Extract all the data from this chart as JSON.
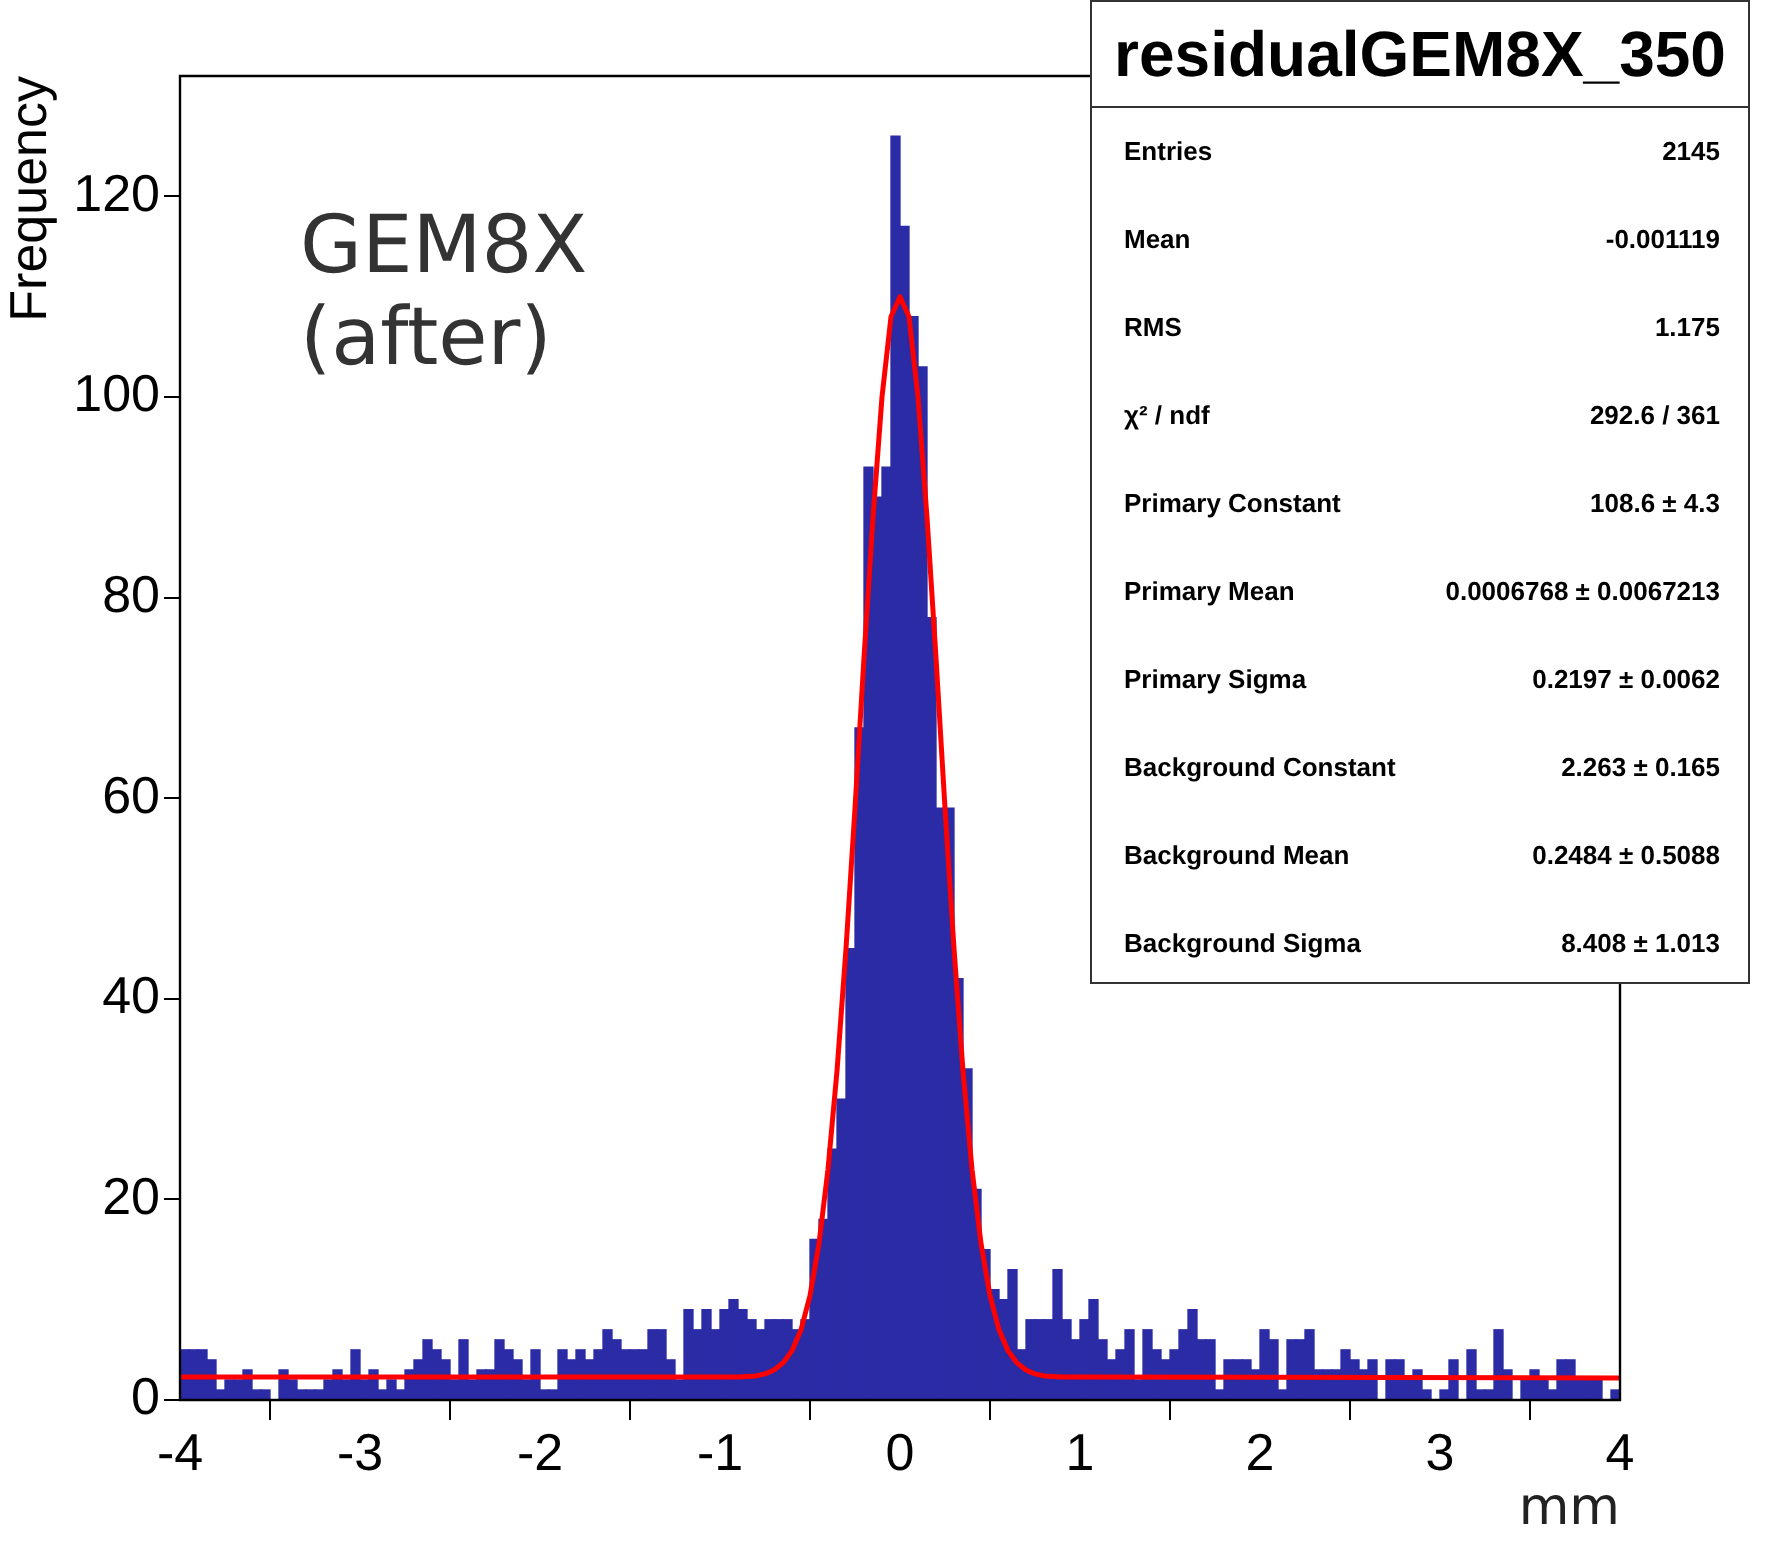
{
  "chart_data": {
    "type": "histogram",
    "title": "residualGEM8X_350",
    "xlabel": "mm",
    "ylabel": "Frequency",
    "bins": [
      -4,
      -3.95,
      -3.9,
      -3.85,
      -3.8,
      -3.75,
      -3.7,
      -3.65,
      -3.6,
      -3.55,
      -3.5,
      -3.45,
      -3.4,
      -3.35,
      -3.3,
      -3.25,
      -3.2,
      -3.15,
      -3.1,
      -3.05,
      -3,
      -2.95,
      -2.9,
      -2.85,
      -2.8,
      -2.75,
      -2.7,
      -2.65,
      -2.6,
      -2.55,
      -2.5,
      -2.45,
      -2.4,
      -2.35,
      -2.3,
      -2.25,
      -2.2,
      -2.15,
      -2.1,
      -2.05,
      -2,
      -1.95,
      -1.9,
      -1.85,
      -1.8,
      -1.75,
      -1.7,
      -1.65,
      -1.6,
      -1.55,
      -1.5,
      -1.45,
      -1.4,
      -1.35,
      -1.3,
      -1.25,
      -1.2,
      -1.15,
      -1.1,
      -1.05,
      -1,
      -0.95,
      -0.9,
      -0.85,
      -0.8,
      -0.75,
      -0.7,
      -0.65,
      -0.6,
      -0.55,
      -0.5,
      -0.45,
      -0.4,
      -0.35,
      -0.3,
      -0.25,
      -0.2,
      -0.15,
      -0.1,
      -0.05,
      0,
      0.05,
      0.1,
      0.15,
      0.2,
      0.25,
      0.3,
      0.35,
      0.4,
      0.45,
      0.5,
      0.55,
      0.6,
      0.65,
      0.7,
      0.75,
      0.8,
      0.85,
      0.9,
      0.95,
      1,
      1.05,
      1.1,
      1.15,
      1.2,
      1.25,
      1.3,
      1.35,
      1.4,
      1.45,
      1.5,
      1.55,
      1.6,
      1.65,
      1.7,
      1.75,
      1.8,
      1.85,
      1.9,
      1.95,
      2,
      2.05,
      2.1,
      2.15,
      2.2,
      2.25,
      2.3,
      2.35,
      2.4,
      2.45,
      2.5,
      2.55,
      2.6,
      2.65,
      2.7,
      2.75,
      2.8,
      2.85,
      2.9,
      2.95,
      3,
      3.05,
      3.1,
      3.15,
      3.2,
      3.25,
      3.3,
      3.35,
      3.4,
      3.45,
      3.5,
      3.55,
      3.6,
      3.65,
      3.7,
      3.75,
      3.8,
      3.85,
      3.9,
      3.95,
      4
    ],
    "values": [
      5,
      5,
      5,
      4,
      1,
      2,
      2,
      3,
      1,
      1,
      0,
      3,
      2,
      1,
      1,
      1,
      2,
      3,
      2,
      5,
      2,
      3,
      1,
      2,
      1,
      3,
      4,
      6,
      5,
      4,
      2,
      6,
      2,
      3,
      3,
      6,
      5,
      4,
      2,
      5,
      1,
      1,
      5,
      4,
      5,
      4,
      5,
      7,
      6,
      5,
      5,
      5,
      7,
      7,
      4,
      2,
      9,
      7,
      9,
      7,
      9,
      10,
      9,
      8,
      7,
      8,
      8,
      8,
      7,
      8,
      16,
      18,
      25,
      30,
      45,
      67,
      93,
      90,
      93,
      126,
      117,
      108,
      103,
      78,
      59,
      59,
      42,
      33,
      21,
      15,
      11,
      10,
      13,
      5,
      8,
      8,
      8,
      13,
      8,
      6,
      8,
      10,
      6,
      4,
      5,
      7,
      2,
      7,
      5,
      4,
      5,
      7,
      9,
      6,
      6,
      1,
      4,
      4,
      4,
      3,
      7,
      6,
      1,
      6,
      6,
      7,
      3,
      3,
      3,
      5,
      4,
      3,
      4,
      0,
      4,
      4,
      2,
      3,
      1,
      0,
      1,
      4,
      0,
      5,
      1,
      1,
      7,
      3,
      0,
      2,
      3,
      2,
      1,
      4,
      4,
      2,
      2,
      2,
      0,
      1
    ],
    "color": "#2b2ba6",
    "series": [
      {
        "type": "line",
        "color": "#ff0000",
        "x": [
          -4,
          -1,
          -0.9,
          -0.8,
          -0.75,
          -0.7,
          -0.65,
          -0.6,
          -0.55,
          -0.5,
          -0.45,
          -0.4,
          -0.35,
          -0.3,
          -0.25,
          -0.2,
          -0.15,
          -0.1,
          -0.05,
          0,
          0.05,
          0.1,
          0.15,
          0.2,
          0.25,
          0.3,
          0.35,
          0.4,
          0.45,
          0.5,
          0.55,
          0.6,
          0.65,
          0.7,
          0.75,
          0.8,
          0.9,
          1,
          4
        ],
        "values": [
          2.3,
          2.3,
          2.3,
          2.4,
          2.6,
          3,
          3.7,
          4.9,
          7,
          10.4,
          15.6,
          23,
          32.8,
          45,
          59,
          74,
          88,
          100,
          108,
          110,
          108,
          100,
          88,
          74,
          59,
          45,
          32.8,
          23,
          15.6,
          10.4,
          7,
          4.9,
          3.7,
          3,
          2.6,
          2.4,
          2.3,
          2.3,
          2.2
        ]
      }
    ],
    "xlim": [
      -4,
      4
    ],
    "xticks": [
      -4,
      -3,
      -2,
      -1,
      0,
      1,
      2,
      3,
      4
    ],
    "ylim": [
      0,
      132
    ],
    "yticks": [
      0,
      20,
      40,
      60,
      80,
      100,
      120
    ],
    "grid": false,
    "legend": false,
    "marker": "none",
    "annotations": [
      "GEM8X\n(after)",
      "Entries\t2145",
      "Mean\t-0.001119",
      "RMS\t1.175",
      "χ² / ndf\t292.6 / 361",
      "Primary Constant\t108.6 ± 4.3",
      "Primary Mean\t0.0006768 ± 0.0067213",
      "Primary Sigma\t0.2197 ± 0.0062",
      "Background Constant\t2.263 ± 0.165",
      "Background Mean\t0.2484 ± 0.5088",
      "Background Sigma\t8.408 ± 1.013"
    ]
  }
}
